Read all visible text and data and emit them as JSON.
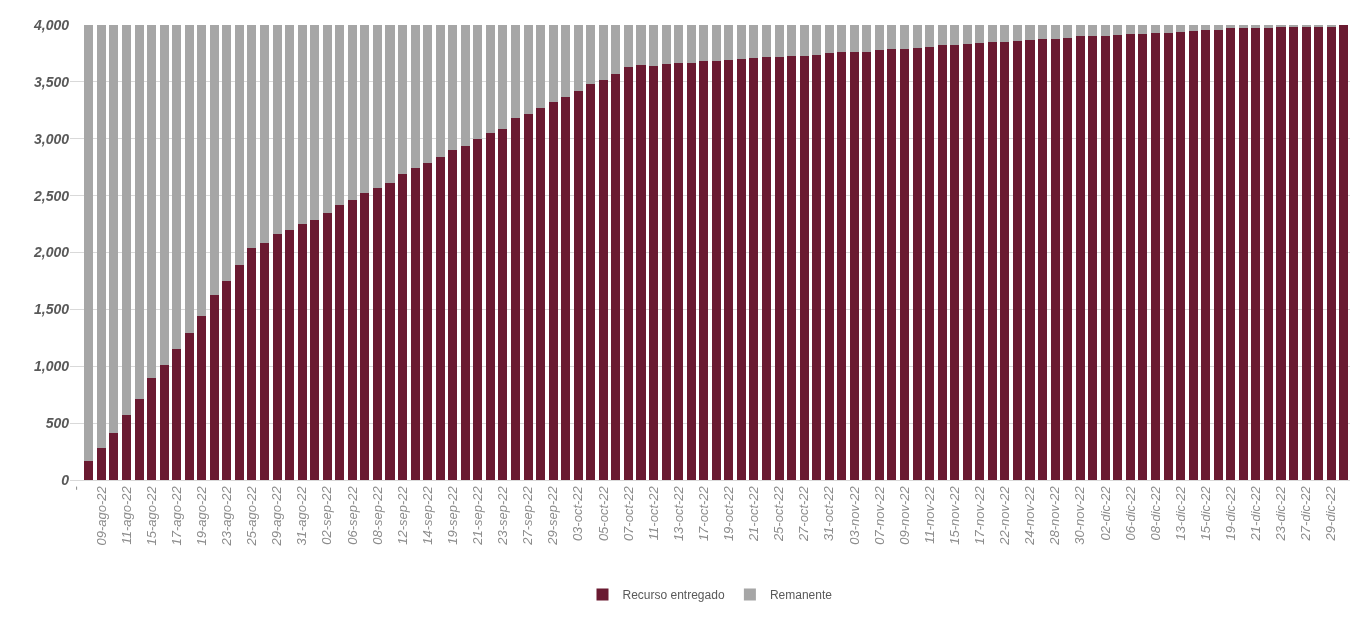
{
  "chart_data": {
    "type": "bar",
    "stacked": true,
    "categories": [
      "-",
      null,
      "09-ago-22",
      null,
      "11-ago-22",
      null,
      "15-ago-22",
      null,
      "17-ago-22",
      null,
      "19-ago-22",
      null,
      "23-ago-22",
      null,
      "25-ago-22",
      null,
      "29-ago-22",
      null,
      "31-ago-22",
      null,
      "02-sep-22",
      null,
      "06-sep-22",
      null,
      "08-sep-22",
      null,
      "12-sep-22",
      null,
      "14-sep-22",
      null,
      "19-sep-22",
      null,
      "21-sep-22",
      null,
      "23-sep-22",
      null,
      "27-sep-22",
      null,
      "29-sep-22",
      null,
      "03-oct-22",
      null,
      "05-oct-22",
      null,
      "07-oct-22",
      null,
      "11-oct-22",
      null,
      "13-oct-22",
      null,
      "17-oct-22",
      null,
      "19-oct-22",
      null,
      "21-oct-22",
      null,
      "25-oct-22",
      null,
      "27-oct-22",
      null,
      "31-oct-22",
      null,
      "03-nov-22",
      null,
      "07-nov-22",
      null,
      "09-nov-22",
      null,
      "11-nov-22",
      null,
      "15-nov-22",
      null,
      "17-nov-22",
      null,
      "22-nov-22",
      null,
      "24-nov-22",
      null,
      "28-nov-22",
      null,
      "30-nov-22",
      null,
      "02-dic-22",
      null,
      "06-dic-22",
      null,
      "08-dic-22",
      null,
      "13-dic-22",
      null,
      "15-dic-22",
      null,
      "19-dic-22",
      null,
      "21-dic-22",
      null,
      "23-dic-22",
      null,
      "27-dic-22",
      null,
      "29-dic-22",
      null
    ],
    "series": [
      {
        "name": "Recurso entregado",
        "color": "#6a1a31",
        "values": [
          null,
          170,
          280,
          410,
          570,
          710,
          900,
          1010,
          1150,
          1290,
          1440,
          1630,
          1750,
          1890,
          2040,
          2080,
          2160,
          2200,
          2250,
          2290,
          2350,
          2420,
          2460,
          2520,
          2570,
          2610,
          2690,
          2740,
          2790,
          2840,
          2900,
          2940,
          3000,
          3050,
          3090,
          3180,
          3220,
          3270,
          3320,
          3370,
          3420,
          3480,
          3520,
          3570,
          3630,
          3650,
          3640,
          3660,
          3670,
          3670,
          3680,
          3680,
          3690,
          3700,
          3710,
          3720,
          3720,
          3730,
          3730,
          3740,
          3750,
          3760,
          3760,
          3760,
          3780,
          3790,
          3790,
          3800,
          3810,
          3820,
          3820,
          3830,
          3840,
          3850,
          3850,
          3860,
          3870,
          3880,
          3880,
          3890,
          3900,
          3900,
          3900,
          3910,
          3920,
          3920,
          3930,
          3930,
          3940,
          3950,
          3960,
          3960,
          3970,
          3970,
          3970,
          3970,
          3980,
          3990,
          3990,
          3990,
          3990,
          4000
        ]
      },
      {
        "name": "Remanente",
        "color": "#a6a6a6",
        "values": [
          null,
          3830,
          3720,
          3590,
          3430,
          3290,
          3100,
          2990,
          2850,
          2710,
          2560,
          2370,
          2250,
          2110,
          1960,
          1920,
          1840,
          1800,
          1750,
          1710,
          1650,
          1580,
          1540,
          1480,
          1430,
          1390,
          1310,
          1260,
          1210,
          1160,
          1100,
          1060,
          1000,
          950,
          910,
          820,
          780,
          730,
          680,
          630,
          580,
          520,
          480,
          430,
          370,
          350,
          360,
          340,
          330,
          330,
          320,
          320,
          310,
          300,
          290,
          280,
          280,
          270,
          270,
          260,
          250,
          240,
          240,
          240,
          220,
          210,
          210,
          200,
          190,
          180,
          180,
          170,
          160,
          150,
          150,
          140,
          130,
          120,
          120,
          110,
          100,
          100,
          100,
          90,
          80,
          80,
          70,
          70,
          60,
          50,
          40,
          40,
          30,
          30,
          30,
          30,
          20,
          10,
          10,
          10,
          10,
          null
        ]
      }
    ],
    "ylim": [
      0,
      4000
    ],
    "yticks": [
      {
        "value": 0,
        "label": "0"
      },
      {
        "value": 500,
        "label": "500"
      },
      {
        "value": 1000,
        "label": "1,000"
      },
      {
        "value": 1500,
        "label": "1,500"
      },
      {
        "value": 2000,
        "label": "2,000"
      },
      {
        "value": 2500,
        "label": "2,500"
      },
      {
        "value": 3000,
        "label": "3,000"
      },
      {
        "value": 3500,
        "label": "3,500"
      },
      {
        "value": 4000,
        "label": "4,000"
      }
    ],
    "grid": "y",
    "legend": "bottom"
  }
}
